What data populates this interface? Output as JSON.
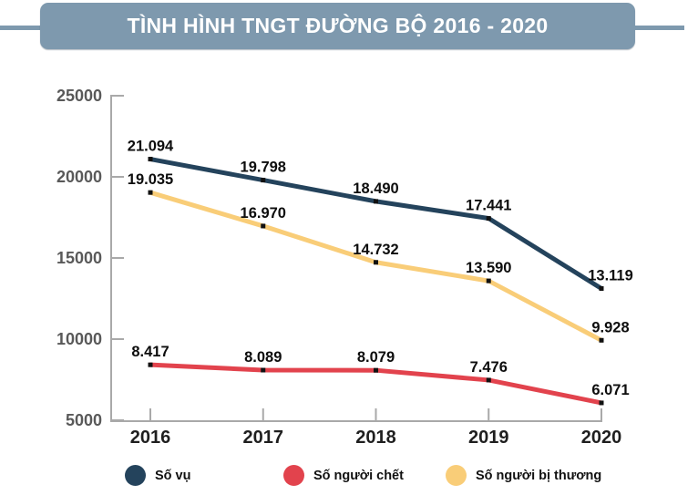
{
  "header": {
    "title": "TÌNH HÌNH TNGT ĐƯỜNG BỘ 2016 - 2020",
    "bar_color": "#7e99ae"
  },
  "chart_data": {
    "type": "line",
    "title": "TÌNH HÌNH TNGT ĐƯỜNG BỘ 2016 - 2020",
    "categories": [
      "2016",
      "2017",
      "2018",
      "2019",
      "2020"
    ],
    "series": [
      {
        "name": "Số vụ",
        "color": "#24435c",
        "values": [
          21094,
          19798,
          18490,
          17441,
          13119
        ],
        "labels": [
          "21.094",
          "19.798",
          "18.490",
          "17.441",
          "13.119"
        ]
      },
      {
        "name": "Số người chết",
        "color": "#e2434d",
        "values": [
          8417,
          8089,
          8079,
          7476,
          6071
        ],
        "labels": [
          "8.417",
          "8.089",
          "8.079",
          "7.476",
          "6.071"
        ]
      },
      {
        "name": "Số người bị thương",
        "color": "#f9cd78",
        "values": [
          19035,
          16970,
          14732,
          13590,
          9928
        ],
        "labels": [
          "19.035",
          "16.970",
          "14.732",
          "13.590",
          "9.928"
        ]
      }
    ],
    "xlabel": "",
    "ylabel": "",
    "ylim": [
      5000,
      25000
    ],
    "yticks": [
      25000,
      20000,
      15000,
      10000,
      5000
    ],
    "ytick_labels": [
      "25000",
      "20000",
      "15000",
      "10000",
      "5000"
    ],
    "grid": false,
    "legend_position": "bottom",
    "axis_color": "#a9a9a9",
    "marker": "square",
    "marker_color": "#111111"
  },
  "legend": {
    "items": [
      {
        "label": "Số vụ",
        "color": "#24435c"
      },
      {
        "label": "Số người chết",
        "color": "#e2434d"
      },
      {
        "label": "Số người bị thương",
        "color": "#f9cd78"
      }
    ]
  }
}
